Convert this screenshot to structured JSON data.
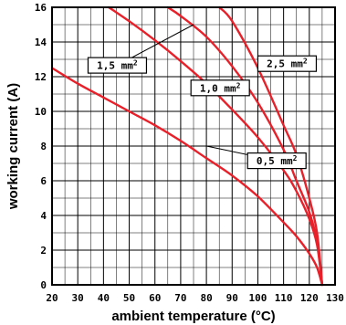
{
  "chart_data": {
    "type": "line",
    "title": "",
    "xlabel": "ambient temperature (°C)",
    "ylabel": "working current (A)",
    "xlim": [
      20,
      130
    ],
    "ylim": [
      0,
      16
    ],
    "x_ticks": [
      20,
      30,
      40,
      50,
      60,
      70,
      80,
      90,
      100,
      110,
      120,
      130
    ],
    "y_ticks": [
      0,
      2,
      4,
      6,
      8,
      10,
      12,
      14,
      16
    ],
    "x_tick_labels": [
      "20",
      "30",
      "40",
      "50",
      "60",
      "70",
      "80",
      "90",
      "100",
      "110",
      "120",
      "130"
    ],
    "y_tick_labels": [
      "0",
      "2",
      "4",
      "6",
      "8",
      "10",
      "12",
      "14",
      "16"
    ],
    "grid": true,
    "line_color": "#e8202a",
    "series": [
      {
        "name": "0,5 mm²",
        "label_base": "0,5 mm",
        "label_sup": "2",
        "points": [
          [
            20,
            12.5
          ],
          [
            30,
            11.6
          ],
          [
            40,
            10.8
          ],
          [
            50,
            10.0
          ],
          [
            60,
            9.2
          ],
          [
            70,
            8.3
          ],
          [
            80,
            7.3
          ],
          [
            90,
            6.3
          ],
          [
            100,
            5.1
          ],
          [
            110,
            3.6
          ],
          [
            115,
            2.8
          ],
          [
            120,
            1.8
          ],
          [
            123,
            1.0
          ],
          [
            125,
            0.0
          ]
        ]
      },
      {
        "name": "1,0 mm²",
        "label_base": "1,0 mm",
        "label_sup": "2",
        "points": [
          [
            42,
            16.0
          ],
          [
            50,
            15.2
          ],
          [
            60,
            14.1
          ],
          [
            70,
            12.9
          ],
          [
            80,
            11.6
          ],
          [
            90,
            10.1
          ],
          [
            100,
            8.5
          ],
          [
            110,
            6.6
          ],
          [
            115,
            5.4
          ],
          [
            120,
            3.8
          ],
          [
            123,
            2.3
          ],
          [
            125,
            0.0
          ]
        ]
      },
      {
        "name": "1,5 mm²",
        "label_base": "1,5 mm",
        "label_sup": "2",
        "points": [
          [
            65,
            16.0
          ],
          [
            70,
            15.5
          ],
          [
            80,
            14.3
          ],
          [
            90,
            12.6
          ],
          [
            100,
            10.5
          ],
          [
            110,
            7.8
          ],
          [
            115,
            6.0
          ],
          [
            120,
            4.2
          ],
          [
            123,
            2.5
          ],
          [
            125,
            0.0
          ]
        ]
      },
      {
        "name": "2,5 mm²",
        "label_base": "2,5 mm",
        "label_sup": "2",
        "points": [
          [
            85,
            16.0
          ],
          [
            90,
            15.2
          ],
          [
            100,
            12.5
          ],
          [
            110,
            9.2
          ],
          [
            115,
            7.5
          ],
          [
            120,
            5.0
          ],
          [
            123,
            3.0
          ],
          [
            125,
            0.0
          ]
        ]
      }
    ]
  }
}
